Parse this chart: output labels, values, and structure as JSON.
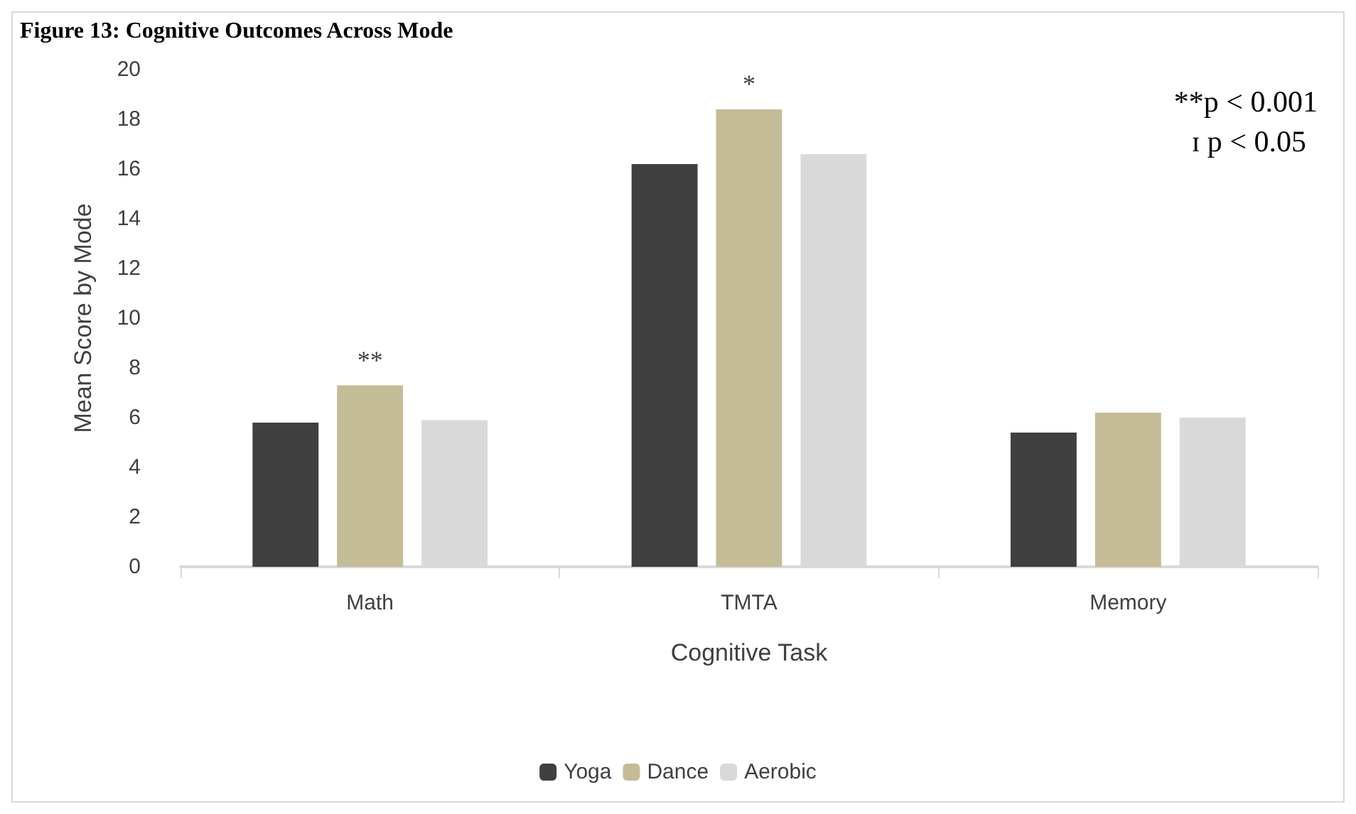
{
  "chart_data": {
    "type": "bar",
    "title": "Figure 13: Cognitive Outcomes Across Mode",
    "xlabel": "Cognitive Task",
    "ylabel": "Mean Score by Mode",
    "categories": [
      "Math",
      "TMTA",
      "Memory"
    ],
    "series": [
      {
        "name": "Yoga",
        "color": "#404040",
        "values": [
          5.8,
          16.2,
          5.4
        ]
      },
      {
        "name": "Dance",
        "color": "#c4bc96",
        "values": [
          7.3,
          18.4,
          6.2
        ]
      },
      {
        "name": "Aerobic",
        "color": "#d9d9d9",
        "values": [
          5.9,
          16.6,
          6.0
        ]
      }
    ],
    "ylim": [
      0,
      20
    ],
    "yticks": [
      0,
      2,
      4,
      6,
      8,
      10,
      12,
      14,
      16,
      18,
      20
    ],
    "grid": false,
    "legend": "bottom",
    "annotations": [
      {
        "text": "**",
        "x": "Math",
        "y": 7.3
      },
      {
        "text": "*",
        "x": "TMTA",
        "y": 18.4
      },
      "**p < 0.001",
      "ɪ p < 0.05"
    ]
  }
}
